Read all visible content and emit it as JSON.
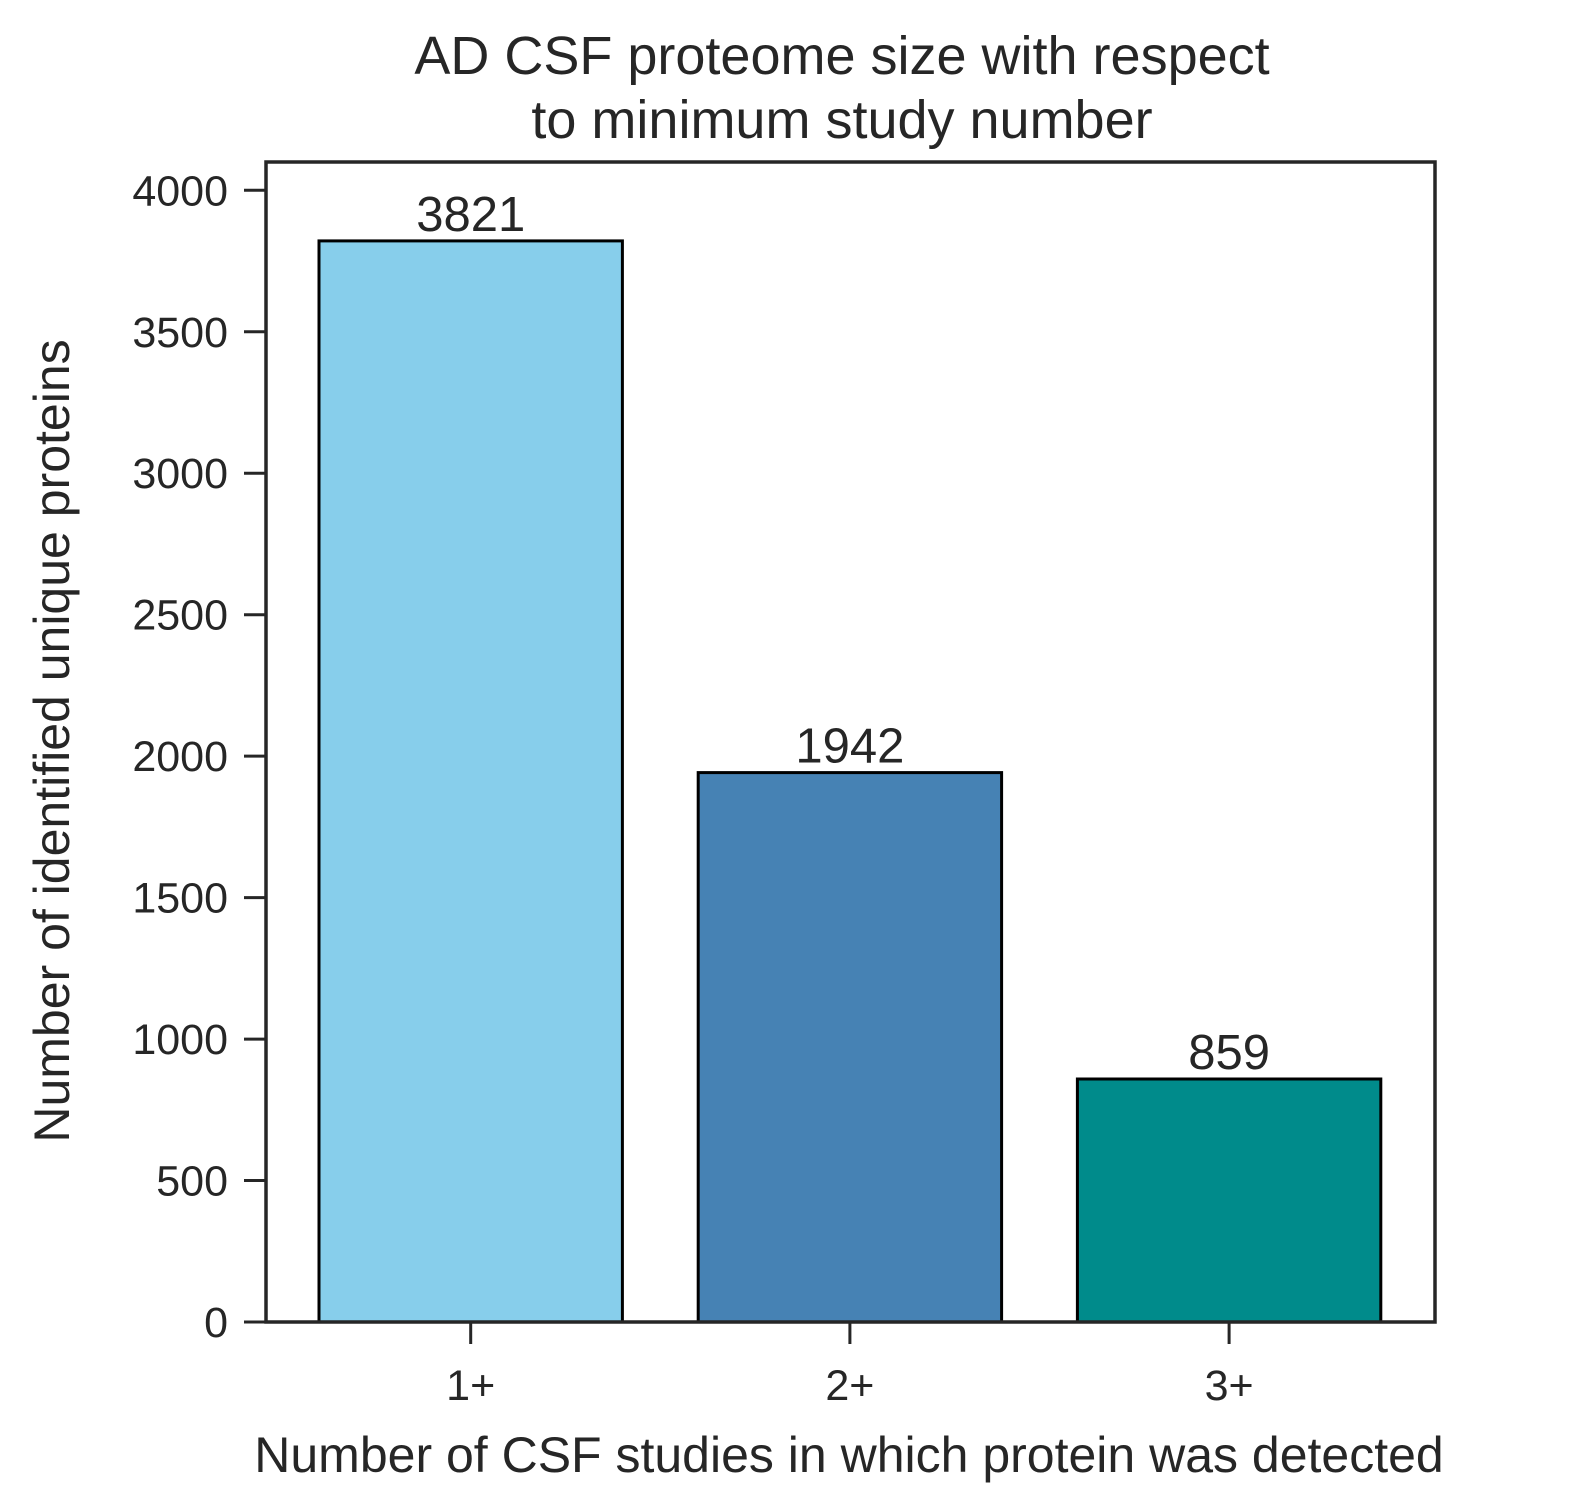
{
  "chart_data": {
    "type": "bar",
    "title_lines": [
      "AD CSF proteome size with respect",
      "to minimum study number"
    ],
    "xlabel": "Number of CSF studies in which protein was detected",
    "ylabel": "Number of identified unique proteins",
    "categories": [
      "1+",
      "2+",
      "3+"
    ],
    "values": [
      3821,
      1942,
      859
    ],
    "data_labels": [
      "3821",
      "1942",
      "859"
    ],
    "colors": [
      "#87CEEB",
      "#4682B4",
      "#008B8B"
    ],
    "ylim": [
      0,
      4100
    ],
    "yticks": [
      0,
      500,
      1000,
      1500,
      2000,
      2500,
      3000,
      3500,
      4000
    ],
    "ytick_labels": [
      "0",
      "500",
      "1000",
      "1500",
      "2000",
      "2500",
      "3000",
      "3500",
      "4000"
    ],
    "grid": false,
    "legend": "none"
  }
}
